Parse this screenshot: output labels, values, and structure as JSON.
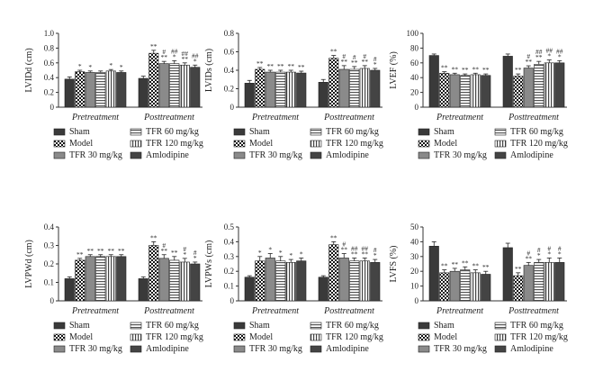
{
  "series_names": [
    "Sham",
    "Model",
    "TFR 30 mg/kg",
    "TFR 60 mg/kg",
    "TFR 120 mg/kg",
    "Amlodipine"
  ],
  "group_labels": [
    "Pretreatment",
    "Posttreatment"
  ],
  "chart_data": [
    {
      "type": "bar",
      "ylabel": "LVIDd (cm)",
      "ylim": [
        0,
        1.0
      ],
      "yticks": [
        "0",
        "0.2",
        "0.4",
        "0.6",
        "0.8",
        "1.0"
      ],
      "categories": [
        "Pretreatment",
        "Posttreatment"
      ],
      "series": [
        {
          "name": "Sham",
          "values": [
            0.38,
            0.39
          ],
          "err": [
            0.03,
            0.03
          ],
          "sig": [
            "",
            ""
          ]
        },
        {
          "name": "Model",
          "values": [
            0.48,
            0.73
          ],
          "err": [
            0.02,
            0.04
          ],
          "sig": [
            "*",
            "**"
          ]
        },
        {
          "name": "TFR 30 mg/kg",
          "values": [
            0.47,
            0.59
          ],
          "err": [
            0.02,
            0.03
          ],
          "sig": [
            "*",
            "**"
          ]
        },
        {
          "name": "TFR 60 mg/kg",
          "values": [
            0.47,
            0.59
          ],
          "err": [
            0.02,
            0.04
          ],
          "sig": [
            "",
            "*"
          ]
        },
        {
          "name": "TFR 120 mg/kg",
          "values": [
            0.49,
            0.57
          ],
          "err": [
            0.02,
            0.03
          ],
          "sig": [
            "*",
            "**"
          ]
        },
        {
          "name": "Amlodipine",
          "values": [
            0.47,
            0.54
          ],
          "err": [
            0.02,
            0.03
          ],
          "sig": [
            "*",
            "*"
          ]
        }
      ],
      "sig_upper": [
        "",
        "",
        "#",
        "##",
        "##",
        "##"
      ]
    },
    {
      "type": "bar",
      "ylabel": "LVIDs (cm)",
      "ylim": [
        0,
        0.8
      ],
      "yticks": [
        "0",
        "0.2",
        "0.4",
        "0.6",
        "0.8"
      ],
      "categories": [
        "Pretreatment",
        "Posttreatment"
      ],
      "series": [
        {
          "name": "Sham",
          "values": [
            0.26,
            0.27
          ],
          "err": [
            0.03,
            0.03
          ],
          "sig": [
            "",
            ""
          ]
        },
        {
          "name": "Model",
          "values": [
            0.41,
            0.53
          ],
          "err": [
            0.02,
            0.03
          ],
          "sig": [
            "**",
            "**"
          ]
        },
        {
          "name": "TFR 30 mg/kg",
          "values": [
            0.38,
            0.41
          ],
          "err": [
            0.02,
            0.04
          ],
          "sig": [
            "**",
            "**"
          ]
        },
        {
          "name": "TFR 60 mg/kg",
          "values": [
            0.38,
            0.41
          ],
          "err": [
            0.02,
            0.03
          ],
          "sig": [
            "**",
            "**"
          ]
        },
        {
          "name": "TFR 120 mg/kg",
          "values": [
            0.38,
            0.42
          ],
          "err": [
            0.02,
            0.03
          ],
          "sig": [
            "**",
            "**"
          ]
        },
        {
          "name": "Amlodipine",
          "values": [
            0.37,
            0.4
          ],
          "err": [
            0.02,
            0.02
          ],
          "sig": [
            "**",
            "*"
          ]
        }
      ],
      "sig_upper": [
        "",
        "",
        "#",
        "#",
        "#",
        "#"
      ]
    },
    {
      "type": "bar",
      "ylabel": "LVEF (%)",
      "ylim": [
        0,
        100
      ],
      "yticks": [
        "0",
        "20",
        "40",
        "60",
        "80",
        "100"
      ],
      "categories": [
        "Pretreatment",
        "Posttreatment"
      ],
      "series": [
        {
          "name": "Sham",
          "values": [
            70,
            69
          ],
          "err": [
            2,
            3
          ],
          "sig": [
            "",
            ""
          ]
        },
        {
          "name": "Model",
          "values": [
            46,
            42
          ],
          "err": [
            2,
            3
          ],
          "sig": [
            "**",
            "**"
          ]
        },
        {
          "name": "TFR 30 mg/kg",
          "values": [
            44,
            53
          ],
          "err": [
            2,
            3
          ],
          "sig": [
            "**",
            "**"
          ]
        },
        {
          "name": "TFR 60 mg/kg",
          "values": [
            43,
            58
          ],
          "err": [
            2,
            4
          ],
          "sig": [
            "**",
            "**"
          ]
        },
        {
          "name": "TFR 120 mg/kg",
          "values": [
            44,
            60
          ],
          "err": [
            2,
            4
          ],
          "sig": [
            "**",
            "*"
          ]
        },
        {
          "name": "Amlodipine",
          "values": [
            43,
            60
          ],
          "err": [
            2,
            3
          ],
          "sig": [
            "**",
            "*"
          ]
        }
      ],
      "sig_upper": [
        "",
        "",
        "#",
        "##",
        "##",
        "##"
      ]
    },
    {
      "type": "bar",
      "ylabel": "LVPWd (cm)",
      "ylim": [
        0,
        0.4
      ],
      "yticks": [
        "0",
        "0.1",
        "0.2",
        "0.3",
        "0.4"
      ],
      "categories": [
        "Pretreatment",
        "Posttreatment"
      ],
      "series": [
        {
          "name": "Sham",
          "values": [
            0.12,
            0.12
          ],
          "err": [
            0.01,
            0.01
          ],
          "sig": [
            "",
            ""
          ]
        },
        {
          "name": "Model",
          "values": [
            0.22,
            0.3
          ],
          "err": [
            0.01,
            0.02
          ],
          "sig": [
            "**",
            "**"
          ]
        },
        {
          "name": "TFR 30 mg/kg",
          "values": [
            0.24,
            0.23
          ],
          "err": [
            0.01,
            0.02
          ],
          "sig": [
            "**",
            "**"
          ]
        },
        {
          "name": "TFR 60 mg/kg",
          "values": [
            0.24,
            0.22
          ],
          "err": [
            0.01,
            0.02
          ],
          "sig": [
            "**",
            "**"
          ]
        },
        {
          "name": "TFR 120 mg/kg",
          "values": [
            0.24,
            0.21
          ],
          "err": [
            0.01,
            0.02
          ],
          "sig": [
            "**",
            "*"
          ]
        },
        {
          "name": "Amlodipine",
          "values": [
            0.24,
            0.2
          ],
          "err": [
            0.01,
            0.01
          ],
          "sig": [
            "**",
            "*"
          ]
        }
      ],
      "sig_upper": [
        "",
        "",
        "#",
        "",
        "#",
        "#"
      ]
    },
    {
      "type": "bar",
      "ylabel": "LVPWs (cm)",
      "ylim": [
        0,
        0.5
      ],
      "yticks": [
        "0",
        "0.1",
        "0.2",
        "0.3",
        "0.4",
        "0.5"
      ],
      "categories": [
        "Pretreatment",
        "Posttreatment"
      ],
      "series": [
        {
          "name": "Sham",
          "values": [
            0.16,
            0.16
          ],
          "err": [
            0.01,
            0.01
          ],
          "sig": [
            "",
            ""
          ]
        },
        {
          "name": "Model",
          "values": [
            0.27,
            0.38
          ],
          "err": [
            0.03,
            0.02
          ],
          "sig": [
            "*",
            "**"
          ]
        },
        {
          "name": "TFR 30 mg/kg",
          "values": [
            0.29,
            0.29
          ],
          "err": [
            0.03,
            0.03
          ],
          "sig": [
            "*",
            "**"
          ]
        },
        {
          "name": "TFR 60 mg/kg",
          "values": [
            0.27,
            0.27
          ],
          "err": [
            0.03,
            0.02
          ],
          "sig": [
            "*",
            "**"
          ]
        },
        {
          "name": "TFR 120 mg/kg",
          "values": [
            0.26,
            0.27
          ],
          "err": [
            0.02,
            0.02
          ],
          "sig": [
            "*",
            "**"
          ]
        },
        {
          "name": "Amlodipine",
          "values": [
            0.27,
            0.26
          ],
          "err": [
            0.02,
            0.02
          ],
          "sig": [
            "*",
            "*"
          ]
        }
      ],
      "sig_upper": [
        "",
        "",
        "#",
        "##",
        "##",
        "#"
      ]
    },
    {
      "type": "bar",
      "ylabel": "LVFS (%)",
      "ylim": [
        0,
        50
      ],
      "yticks": [
        "0",
        "10",
        "20",
        "30",
        "40",
        "50"
      ],
      "categories": [
        "Pretreatment",
        "Posttreatment"
      ],
      "series": [
        {
          "name": "Sham",
          "values": [
            37,
            36
          ],
          "err": [
            3,
            3
          ],
          "sig": [
            "",
            ""
          ]
        },
        {
          "name": "Model",
          "values": [
            19,
            17
          ],
          "err": [
            2,
            2
          ],
          "sig": [
            "**",
            "**"
          ]
        },
        {
          "name": "TFR 30 mg/kg",
          "values": [
            20,
            24
          ],
          "err": [
            2,
            2
          ],
          "sig": [
            "**",
            "**"
          ]
        },
        {
          "name": "TFR 60 mg/kg",
          "values": [
            21,
            26
          ],
          "err": [
            2,
            2
          ],
          "sig": [
            "**",
            "*"
          ]
        },
        {
          "name": "TFR 120 mg/kg",
          "values": [
            19,
            26
          ],
          "err": [
            2,
            3
          ],
          "sig": [
            "**",
            "*"
          ]
        },
        {
          "name": "Amlodipine",
          "values": [
            18,
            26
          ],
          "err": [
            2,
            3
          ],
          "sig": [
            "**",
            "*"
          ]
        }
      ],
      "sig_upper": [
        "",
        "",
        "#",
        "#",
        "#",
        "#"
      ]
    }
  ]
}
